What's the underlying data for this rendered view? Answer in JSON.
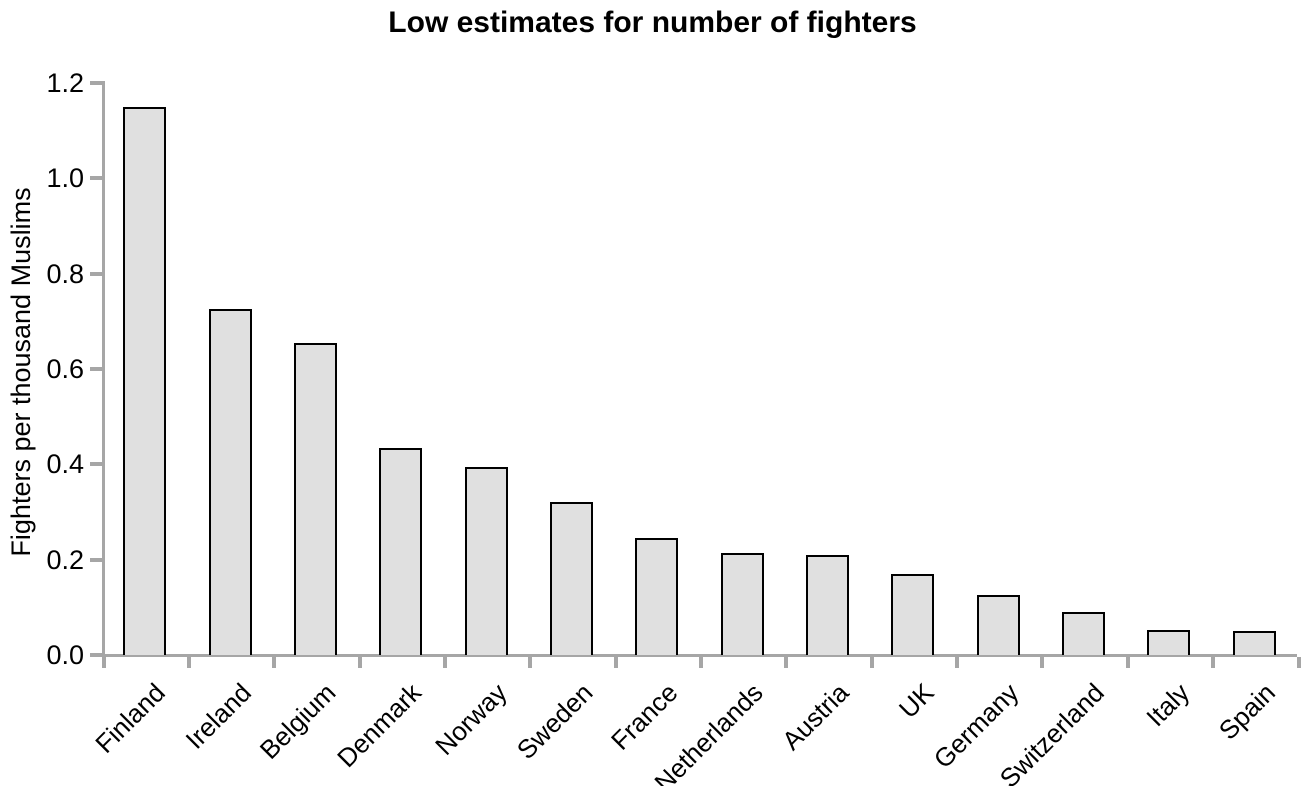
{
  "chart_data": {
    "type": "bar",
    "title": "Low estimates for number of fighters",
    "ylabel": "Fighters per thousand Muslims",
    "xlabel": "",
    "categories": [
      "Finland",
      "Ireland",
      "Belgium",
      "Denmark",
      "Norway",
      "Sweden",
      "France",
      "Netherlands",
      "Austria",
      "UK",
      "Germany",
      "Switzerland",
      "Italy",
      "Spain"
    ],
    "values": [
      1.15,
      0.725,
      0.655,
      0.435,
      0.395,
      0.32,
      0.245,
      0.215,
      0.21,
      0.17,
      0.125,
      0.09,
      0.053,
      0.05
    ],
    "ylim": [
      0,
      1.2
    ],
    "yticks": [
      0,
      0.2,
      0.4,
      0.6,
      0.8,
      1.0,
      1.2
    ],
    "ytick_decimals": 1,
    "xtick_count": 15,
    "grid": false,
    "legend": "none",
    "x_label_rotation_deg": 45,
    "colors": {
      "bar_fill": "#e0e0e0",
      "bar_border": "#000000",
      "axis": "#a6a6a6",
      "text": "#000000",
      "background": "#ffffff"
    }
  }
}
